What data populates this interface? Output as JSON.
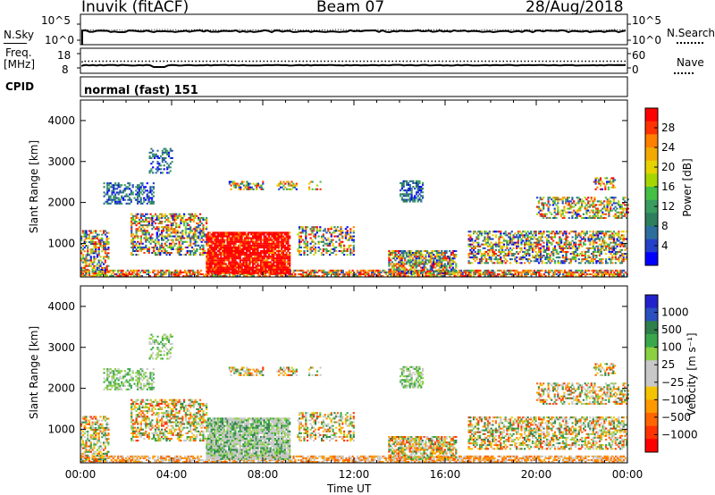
{
  "header": {
    "station": "Inuvik (fitACF)",
    "beam": "Beam 07",
    "date": "28/Aug/2018"
  },
  "noise_panel": {
    "left_label": "N.Sky",
    "right_label": "N.Search",
    "left_ticks": [
      "10^5",
      "10^0"
    ],
    "right_ticks": [
      "10^5",
      "10^0"
    ]
  },
  "freq_panel": {
    "left_label_line1": "Freq.",
    "left_label_line2": "[MHz]",
    "right_label": "Nave",
    "left_ticks": [
      "18",
      "8"
    ],
    "right_ticks": [
      "60",
      "0"
    ]
  },
  "cpid": {
    "label": "CPID",
    "value": "normal (fast) 151"
  },
  "chart_data": [
    {
      "type": "heatmap",
      "title": "",
      "ylabel": "Slant Range [km]",
      "xlabel": "",
      "ylim": [
        180,
        4500
      ],
      "xlim_hours": [
        0,
        24
      ],
      "y_ticks": [
        "1000",
        "2000",
        "3000",
        "4000"
      ],
      "x_ticks": [
        "00:00",
        "04:00",
        "08:00",
        "12:00",
        "16:00",
        "20:00",
        "00:00"
      ],
      "colorbar": {
        "label": "Power [dB]",
        "ticks": [
          "28",
          "24",
          "20",
          "16",
          "12",
          "8",
          "4"
        ],
        "colors": [
          "#ff0000",
          "#ff3300",
          "#ff7f00",
          "#f2a900",
          "#e6d200",
          "#a6d600",
          "#44c044",
          "#3a9c5e",
          "#2e7f5e",
          "#2d6e9c",
          "#2440c8",
          "#0000ff"
        ]
      }
    },
    {
      "type": "heatmap",
      "title": "",
      "ylabel": "Slant Range [km]",
      "xlabel": "Time UT",
      "ylim": [
        180,
        4500
      ],
      "xlim_hours": [
        0,
        24
      ],
      "y_ticks": [
        "1000",
        "2000",
        "3000",
        "4000"
      ],
      "x_ticks": [
        "00:00",
        "04:00",
        "08:00",
        "12:00",
        "16:00",
        "20:00",
        "00:00"
      ],
      "colorbar": {
        "label": "Velocity [m s⁻¹]",
        "ticks": [
          "1000",
          "500",
          "100",
          "25",
          "−25",
          "−100",
          "−500",
          "−1000"
        ],
        "colors": [
          "#2222cc",
          "#2a4fbf",
          "#2f7f4a",
          "#3aa84a",
          "#8ad040",
          "#c8c8c8",
          "#c8c8c8",
          "#f5c400",
          "#ff9900",
          "#ff6600",
          "#ff3300",
          "#ff0000"
        ]
      }
    }
  ]
}
